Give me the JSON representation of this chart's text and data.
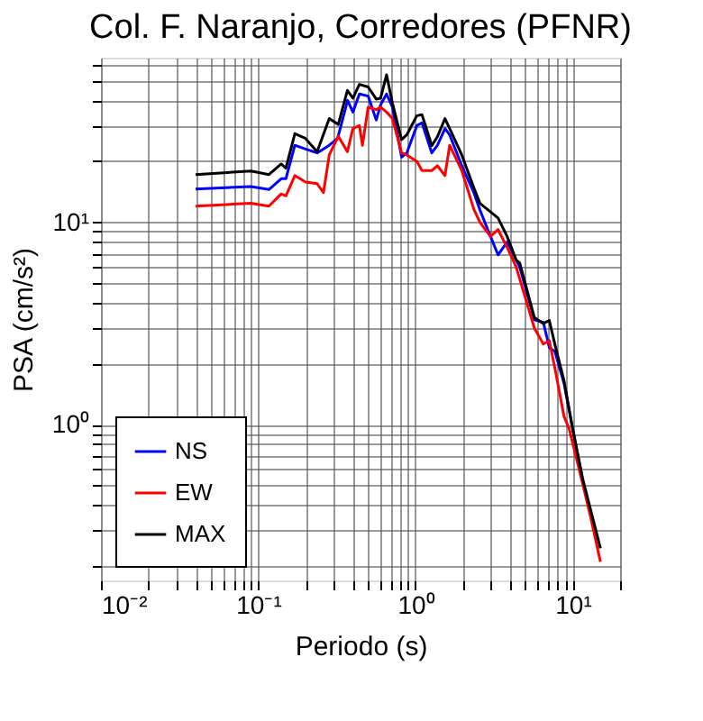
{
  "chart_data": {
    "type": "line",
    "title": "Col. F. Naranjo, Corredores (PFNR)",
    "xlabel": "Periodo (s)",
    "ylabel": "PSA (cm/s²)",
    "log": "xy",
    "grid": true,
    "legend": "bottom left",
    "line_style": "solid",
    "marker": "none",
    "xlim": [
      0.01,
      20
    ],
    "ylim": [
      0.17,
      65
    ],
    "xticks": [
      {
        "value": 0.01,
        "label": "10⁻²"
      },
      {
        "value": 0.02,
        "label": null
      },
      {
        "value": 0.03,
        "label": null
      },
      {
        "value": 0.04,
        "label": null
      },
      {
        "value": 0.05,
        "label": null
      },
      {
        "value": 0.06,
        "label": null
      },
      {
        "value": 0.07,
        "label": null
      },
      {
        "value": 0.08,
        "label": null
      },
      {
        "value": 0.09,
        "label": null
      },
      {
        "value": 0.1,
        "label": "10⁻¹"
      },
      {
        "value": 0.2,
        "label": null
      },
      {
        "value": 0.3,
        "label": null
      },
      {
        "value": 0.4,
        "label": null
      },
      {
        "value": 0.5,
        "label": null
      },
      {
        "value": 0.6,
        "label": null
      },
      {
        "value": 0.7,
        "label": null
      },
      {
        "value": 0.8,
        "label": null
      },
      {
        "value": 0.9,
        "label": null
      },
      {
        "value": 1,
        "label": "10⁰"
      },
      {
        "value": 2,
        "label": null
      },
      {
        "value": 3,
        "label": null
      },
      {
        "value": 4,
        "label": null
      },
      {
        "value": 5,
        "label": null
      },
      {
        "value": 6,
        "label": null
      },
      {
        "value": 7,
        "label": null
      },
      {
        "value": 8,
        "label": null
      },
      {
        "value": 9,
        "label": null
      },
      {
        "value": 10,
        "label": "10¹"
      },
      {
        "value": 20,
        "label": null
      }
    ],
    "yticks": [
      {
        "value": 0.2,
        "label": null
      },
      {
        "value": 0.3,
        "label": null
      },
      {
        "value": 0.4,
        "label": null
      },
      {
        "value": 0.5,
        "label": null
      },
      {
        "value": 0.6,
        "label": null
      },
      {
        "value": 0.7,
        "label": null
      },
      {
        "value": 0.8,
        "label": null
      },
      {
        "value": 0.9,
        "label": null
      },
      {
        "value": 1,
        "label": "10⁰"
      },
      {
        "value": 2,
        "label": null
      },
      {
        "value": 3,
        "label": null
      },
      {
        "value": 4,
        "label": null
      },
      {
        "value": 5,
        "label": null
      },
      {
        "value": 6,
        "label": null
      },
      {
        "value": 7,
        "label": null
      },
      {
        "value": 8,
        "label": null
      },
      {
        "value": 9,
        "label": null
      },
      {
        "value": 10,
        "label": "10¹"
      },
      {
        "value": 20,
        "label": null
      },
      {
        "value": 30,
        "label": null
      },
      {
        "value": 40,
        "label": null
      },
      {
        "value": 50,
        "label": null
      },
      {
        "value": 60,
        "label": null
      }
    ],
    "series": [
      {
        "name": "NS",
        "color": "#0000ff",
        "x": [
          0.04,
          0.09,
          0.117,
          0.14,
          0.15,
          0.171,
          0.2,
          0.237,
          0.283,
          0.32,
          0.37,
          0.4,
          0.44,
          0.5,
          0.563,
          0.6,
          0.655,
          0.714,
          0.816,
          0.88,
          1.02,
          1.1,
          1.27,
          1.38,
          1.54,
          1.65,
          1.97,
          2.35,
          2.57,
          3.0,
          3.35,
          3.83,
          4.37,
          4.6,
          5.7,
          6.5,
          7.1,
          7.7,
          8.8,
          10,
          11.5
        ],
        "values": [
          14.6,
          15,
          14.5,
          16.4,
          16.4,
          24,
          23,
          22,
          24,
          26,
          40,
          35,
          43,
          42,
          32,
          38,
          43,
          37,
          21,
          22,
          30,
          31,
          22,
          24,
          29,
          27,
          19,
          14,
          11.5,
          8.5,
          6.9,
          8,
          6.5,
          6,
          3.3,
          3.2,
          2.4,
          2.3,
          1.6,
          0.95,
          0.55
        ]
      },
      {
        "name": "EW",
        "color": "#ff0000",
        "x": [
          0.04,
          0.09,
          0.117,
          0.14,
          0.15,
          0.171,
          0.2,
          0.237,
          0.26,
          0.283,
          0.323,
          0.369,
          0.4,
          0.44,
          0.46,
          0.5,
          0.563,
          0.6,
          0.655,
          0.714,
          0.816,
          0.88,
          1.02,
          1.1,
          1.27,
          1.38,
          1.54,
          1.65,
          1.97,
          2.35,
          2.57,
          3.0,
          3.35,
          3.83,
          4.37,
          5.7,
          6.5,
          7.1,
          7.7,
          8.8,
          9.5,
          11.5,
          13.1,
          15
        ],
        "values": [
          12,
          12.4,
          12,
          13.8,
          13.5,
          17,
          15.8,
          15.5,
          14,
          21.5,
          26.6,
          22.3,
          29,
          30,
          24,
          37,
          36,
          37,
          35,
          32.5,
          22,
          21.5,
          20,
          18,
          18,
          19,
          17,
          24,
          18,
          11.6,
          10,
          8.5,
          9.2,
          7.5,
          6,
          3,
          2.5,
          2.6,
          1.9,
          1.1,
          0.95,
          0.52,
          0.34,
          0.21
        ]
      },
      {
        "name": "MAX",
        "color": "#000000",
        "x": [
          0.04,
          0.09,
          0.117,
          0.14,
          0.15,
          0.171,
          0.199,
          0.237,
          0.283,
          0.323,
          0.369,
          0.4,
          0.44,
          0.5,
          0.563,
          0.6,
          0.655,
          0.714,
          0.816,
          0.88,
          1.02,
          1.1,
          1.27,
          1.38,
          1.54,
          1.65,
          1.97,
          2.35,
          2.57,
          3.35,
          3.83,
          4.37,
          4.6,
          5.7,
          6.5,
          7.1,
          7.7,
          8.8,
          10,
          11.5,
          13.1,
          15
        ],
        "values": [
          17.2,
          17.9,
          17.2,
          19.4,
          18.5,
          27.4,
          26,
          22.3,
          32.5,
          30.4,
          44.8,
          41,
          48,
          46.6,
          40.6,
          41,
          53.5,
          38.7,
          25.6,
          27,
          33.6,
          34,
          23.9,
          26.5,
          32.5,
          29,
          21.5,
          14.8,
          12.4,
          10.5,
          8.5,
          6.5,
          6.3,
          3.38,
          3.16,
          3.27,
          2.49,
          1.65,
          0.95,
          0.55,
          0.37,
          0.245
        ]
      }
    ]
  }
}
